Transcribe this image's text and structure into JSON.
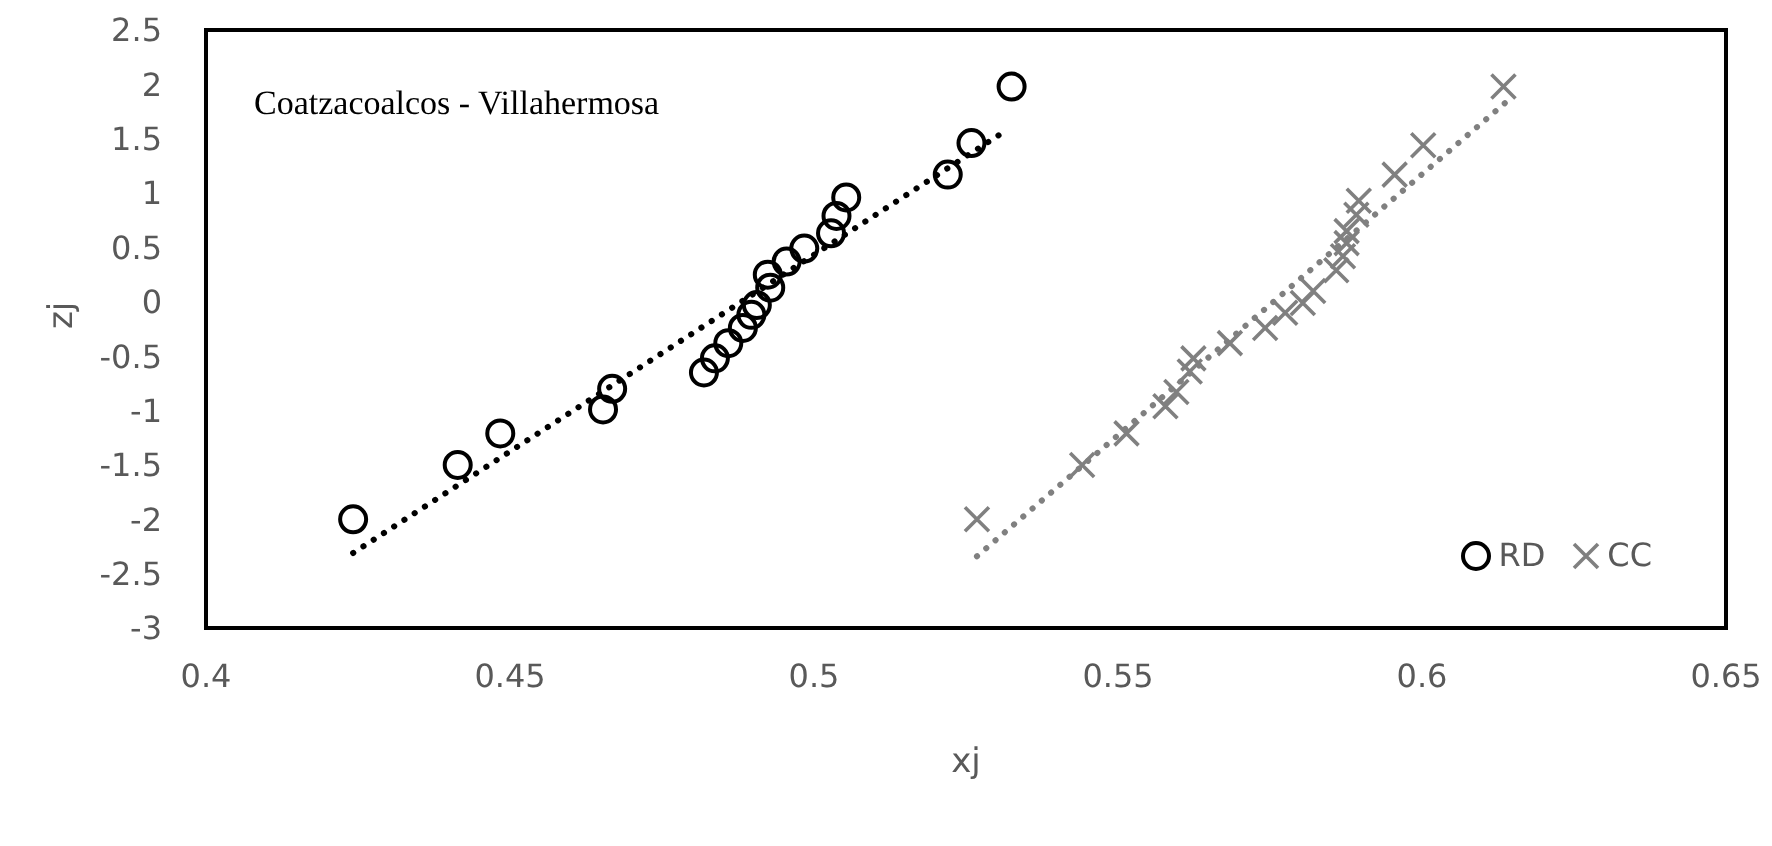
{
  "chart_data": {
    "type": "scatter",
    "xlabel": "xj",
    "ylabel": "zj",
    "annotations": [
      "Coatzacoalcos - Villahermosa"
    ],
    "xlim": [
      0.4,
      0.65
    ],
    "xticks": [
      0.4,
      0.45,
      0.5,
      0.55,
      0.6,
      0.65
    ],
    "ylim": [
      -3,
      2.5
    ],
    "yticks": [
      -3,
      -2.5,
      -2,
      -1.5,
      -1,
      -0.5,
      0,
      0.5,
      1,
      1.5,
      2,
      2.5
    ],
    "grid": false,
    "legend": "bottom right",
    "series": [
      {
        "name": "RD",
        "type": "scatter",
        "marker": "circle",
        "color": "#000000",
        "x": [
          0.4242,
          0.4414,
          0.4484,
          0.4653,
          0.4668,
          0.4819,
          0.4837,
          0.4859,
          0.4883,
          0.4897,
          0.4906,
          0.4928,
          0.4924,
          0.4955,
          0.4984,
          0.5028,
          0.5037,
          0.5053,
          0.522,
          0.5259,
          0.5325
        ],
        "values": [
          -2.0,
          -1.5,
          -1.21,
          -0.99,
          -0.8,
          -0.65,
          -0.52,
          -0.38,
          -0.24,
          -0.12,
          -0.03,
          0.13,
          0.25,
          0.37,
          0.49,
          0.63,
          0.79,
          0.96,
          1.17,
          1.46,
          1.98
        ]
      },
      {
        "name": "CC",
        "type": "scatter",
        "marker": "cross",
        "color": "#808080",
        "x": [
          0.5268,
          0.5441,
          0.5514,
          0.5578,
          0.5596,
          0.5618,
          0.5624,
          0.5684,
          0.5742,
          0.5775,
          0.5804,
          0.5821,
          0.5859,
          0.587,
          0.5876,
          0.5876,
          0.5892,
          0.5896,
          0.5955,
          0.6002,
          0.6134
        ],
        "values": [
          -2.0,
          -1.5,
          -1.21,
          -0.96,
          -0.83,
          -0.64,
          -0.52,
          -0.38,
          -0.24,
          -0.1,
          -0.01,
          0.1,
          0.29,
          0.42,
          0.54,
          0.65,
          0.8,
          0.93,
          1.17,
          1.44,
          1.98
        ]
      },
      {
        "type": "line",
        "marker": "none",
        "line_style": "dotted",
        "color": "#000000",
        "x": [
          0.4242,
          0.5317
        ],
        "values": [
          -2.31,
          1.58
        ]
      },
      {
        "type": "line",
        "marker": "none",
        "line_style": "dotted",
        "color": "#808080",
        "x": [
          0.5268,
          0.6139
        ],
        "values": [
          -2.34,
          1.84
        ]
      }
    ]
  }
}
